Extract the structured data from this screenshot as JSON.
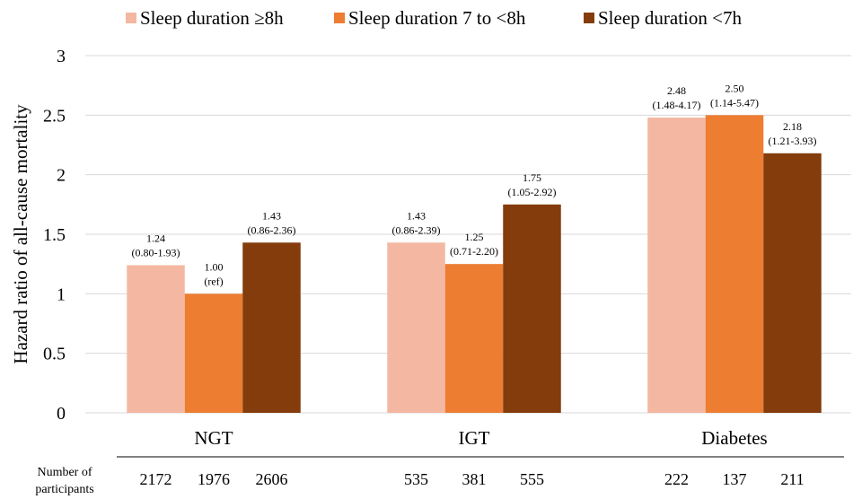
{
  "chart_data": {
    "type": "bar",
    "title": "",
    "ylabel": "Hazard ratio of all-cause mortality",
    "ylim": [
      0,
      3
    ],
    "yticks": [
      "0",
      "0.5",
      "1",
      "1.5",
      "2",
      "2.5",
      "3"
    ],
    "grid": true,
    "legend_position": "top",
    "categories": [
      "NGT",
      "IGT",
      "Diabetes"
    ],
    "series": [
      {
        "name": "Sleep duration ≥8h",
        "color": "#f4b8a2",
        "values": [
          1.24,
          1.43,
          2.48
        ],
        "labels": [
          "1.24",
          "1.43",
          "2.48"
        ],
        "ci_labels": [
          "(0.80-1.93)",
          "(0.86-2.39)",
          "(1.48-4.17)"
        ],
        "participants": [
          "2172",
          "535",
          "222"
        ]
      },
      {
        "name": "Sleep duration 7 to <8h",
        "color": "#ed7d31",
        "values": [
          1.0,
          1.25,
          2.5
        ],
        "labels": [
          "1.00",
          "1.25",
          "2.50"
        ],
        "ci_labels": [
          "(ref)",
          "(0.71-2.20)",
          "(1.14-5.47)"
        ],
        "participants": [
          "1976",
          "381",
          "137"
        ]
      },
      {
        "name": "Sleep duration <7h",
        "color": "#843c0c",
        "values": [
          1.43,
          1.75,
          2.18
        ],
        "labels": [
          "1.43",
          "1.75",
          "2.18"
        ],
        "ci_labels": [
          "(0.86-2.36)",
          "(1.05-2.92)",
          "(1.21-3.93)"
        ],
        "participants": [
          "2606",
          "555",
          "211"
        ]
      }
    ],
    "participants_label": [
      "Number of",
      "participants"
    ]
  }
}
